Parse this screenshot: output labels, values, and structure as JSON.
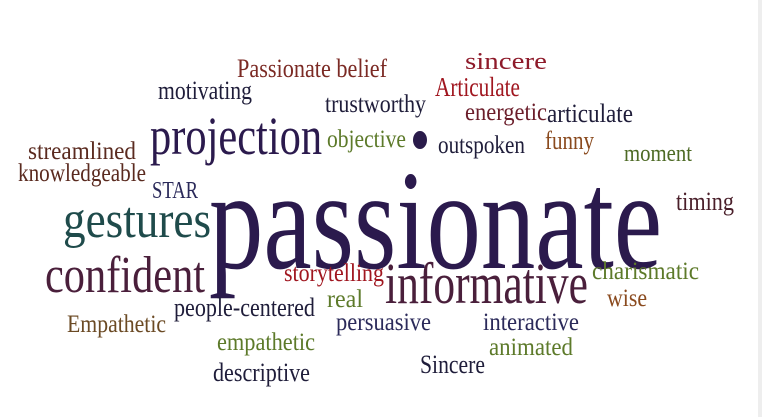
{
  "palette": {
    "dark_purple": "#2b1a4d",
    "navy": "#1f1d3a",
    "maroon": "#7b1d1f",
    "brown": "#6b3b24",
    "olive": "#5d7a2a",
    "teal": "#1f4b4b",
    "plum": "#4a1f3b",
    "crimson": "#8e1a1f"
  },
  "words": [
    {
      "text": "Passionate belief",
      "color": "#7b2a24"
    },
    {
      "text": "sincere",
      "color": "#8e1a2a"
    },
    {
      "text": "motivating",
      "color": "#1f1d3a"
    },
    {
      "text": "Articulate",
      "color": "#a0161f"
    },
    {
      "text": "trustworthy",
      "color": "#1f1d3a"
    },
    {
      "text": "energetic",
      "color": "#6b1d2a"
    },
    {
      "text": "articulate",
      "color": "#1f1d3a"
    },
    {
      "text": "projection",
      "color": "#2b1a4d"
    },
    {
      "text": "objective",
      "color": "#5d7a2a"
    },
    {
      "text": "outspoken",
      "color": "#1f1d3a"
    },
    {
      "text": "funny",
      "color": "#8a4a1e"
    },
    {
      "text": "moment",
      "color": "#4d6a25"
    },
    {
      "text": "streamlined",
      "color": "#5a2a1f"
    },
    {
      "text": "knowledgeable",
      "color": "#5a2a1f"
    },
    {
      "text": "STAR",
      "color": "#2b2a5a"
    },
    {
      "text": "passionate",
      "color": "#2b1a4d"
    },
    {
      "text": "timing",
      "color": "#4a1f2a"
    },
    {
      "text": "gestures",
      "color": "#1f4b4b"
    },
    {
      "text": "confident",
      "color": "#4a1f3b"
    },
    {
      "text": "storytelling",
      "color": "#a0161f"
    },
    {
      "text": "informative",
      "color": "#4a1f3b"
    },
    {
      "text": "charismatic",
      "color": "#5d7a2a"
    },
    {
      "text": "wise",
      "color": "#8a4a1e"
    },
    {
      "text": "real",
      "color": "#5d7a2a"
    },
    {
      "text": "people-centered",
      "color": "#1f1d3a"
    },
    {
      "text": "Empathetic",
      "color": "#6b4a24"
    },
    {
      "text": "persuasive",
      "color": "#2b2a5a"
    },
    {
      "text": "interactive",
      "color": "#2b2a5a"
    },
    {
      "text": "empathetic",
      "color": "#5d7a2a"
    },
    {
      "text": "animated",
      "color": "#5d7a2a"
    },
    {
      "text": "descriptive",
      "color": "#1f1d3a"
    },
    {
      "text": "Sincere",
      "color": "#1f1d3a"
    }
  ]
}
